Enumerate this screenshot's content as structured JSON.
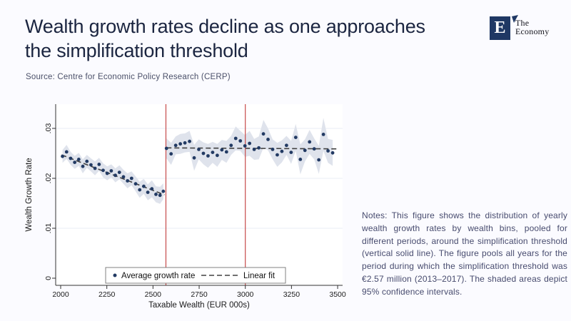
{
  "slide": {
    "title_line1": "Wealth growth rates decline as one approaches",
    "title_line2": "the simplification threshold",
    "source": "Source: Centre for Economic Policy Research (CERP)",
    "notes": "Notes: This figure shows the distribution of yearly wealth growth rates by wealth bins, pooled for different periods, around the simplification threshold (vertical solid line). The figure pools all years for the period during which the simplification threshold was €2.57 million (2013–2017). The shaded areas depict 95% confidence intervals.",
    "logo": {
      "letter": "E",
      "name_line1": "The",
      "name_line2": "Economy"
    }
  },
  "colors": {
    "title": "#1b2540",
    "logo_navy": "#1f3864",
    "dot": "#223a63",
    "ci_band": "#dfe3ec",
    "grid": "#eaeef6",
    "threshold_red": "#c64a4a",
    "fit_dash": "#404040",
    "axis": "#333333",
    "plot_bg": "#ffffff",
    "legend_border": "#808080"
  },
  "chart_data": {
    "type": "scatter",
    "title": "",
    "xlabel": "Taxable Wealth (EUR 000s)",
    "ylabel": "Wealth Growth Rate",
    "xlim": [
      2000,
      3500
    ],
    "ylim": [
      0,
      0.03
    ],
    "xticks": [
      2000,
      2250,
      2500,
      2750,
      3000,
      3250,
      3500
    ],
    "yticks": [
      0,
      0.01,
      0.02,
      0.03
    ],
    "ytick_labels": [
      "0",
      ".01",
      ".02",
      ".03"
    ],
    "grid": "horizontal",
    "vlines": [
      2570,
      3000
    ],
    "legend": {
      "position": "bottom-center",
      "entries": [
        "Average growth rate",
        "Linear fit"
      ]
    },
    "series": [
      {
        "name": "Average growth rate",
        "type": "scatter",
        "ci": "95%",
        "segments": [
          {
            "points": [
              [
                2010,
                0.0244,
                0.0013
              ],
              [
                2032,
                0.0253,
                0.0014
              ],
              [
                2054,
                0.024,
                0.0013
              ],
              [
                2076,
                0.0232,
                0.0013
              ],
              [
                2098,
                0.0238,
                0.0013
              ],
              [
                2120,
                0.0224,
                0.0014
              ],
              [
                2142,
                0.0234,
                0.0013
              ],
              [
                2164,
                0.0227,
                0.0013
              ],
              [
                2186,
                0.022,
                0.0014
              ],
              [
                2208,
                0.0228,
                0.0013
              ],
              [
                2230,
                0.0216,
                0.0014
              ],
              [
                2252,
                0.021,
                0.0014
              ],
              [
                2274,
                0.0215,
                0.0013
              ],
              [
                2296,
                0.0206,
                0.0014
              ],
              [
                2318,
                0.0212,
                0.0014
              ],
              [
                2340,
                0.0203,
                0.0014
              ],
              [
                2362,
                0.0195,
                0.0015
              ],
              [
                2384,
                0.02,
                0.0014
              ],
              [
                2406,
                0.0189,
                0.0015
              ],
              [
                2428,
                0.0177,
                0.0016
              ],
              [
                2450,
                0.0184,
                0.0015
              ],
              [
                2472,
                0.0172,
                0.0016
              ],
              [
                2494,
                0.0179,
                0.0017
              ],
              [
                2516,
                0.0168,
                0.0016
              ],
              [
                2538,
                0.0166,
                0.0017
              ],
              [
                2556,
                0.0174,
                0.0016
              ]
            ]
          },
          {
            "points": [
              [
                2573,
                0.026,
                0.002
              ],
              [
                2598,
                0.0249,
                0.0022
              ],
              [
                2623,
                0.0266,
                0.0018
              ],
              [
                2648,
                0.0269,
                0.002
              ],
              [
                2673,
                0.0271,
                0.0019
              ],
              [
                2698,
                0.0274,
                0.0021
              ],
              [
                2723,
                0.0241,
                0.0026
              ],
              [
                2748,
                0.0258,
                0.002
              ],
              [
                2773,
                0.025,
                0.0022
              ],
              [
                2798,
                0.0245,
                0.0024
              ],
              [
                2823,
                0.0252,
                0.0021
              ],
              [
                2848,
                0.0246,
                0.0023
              ],
              [
                2873,
                0.0257,
                0.002
              ],
              [
                2898,
                0.0253,
                0.0022
              ],
              [
                2923,
                0.0266,
                0.0019
              ],
              [
                2948,
                0.028,
                0.0024
              ],
              [
                2973,
                0.0275,
                0.002
              ],
              [
                2998,
                0.0265,
                0.0022
              ],
              [
                3023,
                0.027,
                0.0025
              ],
              [
                3048,
                0.0258,
                0.0021
              ],
              [
                3073,
                0.0261,
                0.0023
              ],
              [
                3098,
                0.0289,
                0.0028
              ],
              [
                3123,
                0.0278,
                0.0022
              ],
              [
                3148,
                0.0258,
                0.002
              ],
              [
                3173,
                0.0247,
                0.0024
              ],
              [
                3198,
                0.0254,
                0.0022
              ],
              [
                3223,
                0.0266,
                0.0019
              ],
              [
                3248,
                0.0252,
                0.0023
              ],
              [
                3273,
                0.0282,
                0.0027
              ],
              [
                3298,
                0.0238,
                0.003
              ],
              [
                3323,
                0.0256,
                0.0022
              ],
              [
                3348,
                0.0273,
                0.0024
              ],
              [
                3373,
                0.0259,
                0.0021
              ],
              [
                3398,
                0.0237,
                0.0028
              ],
              [
                3423,
                0.0288,
                0.0033
              ],
              [
                3448,
                0.0255,
                0.0024
              ],
              [
                3473,
                0.0251,
                0.0026
              ]
            ]
          }
        ]
      },
      {
        "name": "Linear fit",
        "type": "dashed-line",
        "segments": [
          [
            [
              2005,
              0.0247
            ],
            [
              2562,
              0.0167
            ]
          ],
          [
            [
              2573,
              0.0261
            ],
            [
              3495,
              0.0259
            ]
          ]
        ]
      }
    ]
  }
}
